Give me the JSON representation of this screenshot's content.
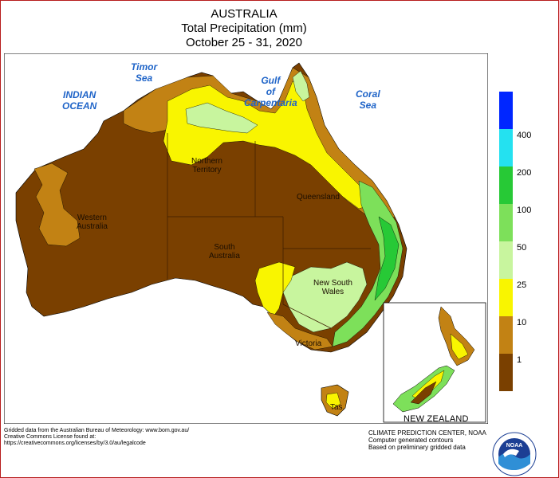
{
  "title": {
    "line1": "AUSTRALIA",
    "line2": "Total Precipitation (mm)",
    "line3": "October 25 - 31, 2020"
  },
  "seas": {
    "indian_ocean": [
      "INDIAN",
      "OCEAN"
    ],
    "timor_sea": [
      "Timor",
      "Sea"
    ],
    "gulf": [
      "Gulf",
      "of",
      "Carpentaria"
    ],
    "coral_sea": [
      "Coral",
      "Sea"
    ]
  },
  "states": {
    "northern_territory": [
      "Northern",
      "Territory"
    ],
    "western_australia": [
      "Western",
      "Australia"
    ],
    "queensland": [
      "Queensland"
    ],
    "south_australia": [
      "South",
      "Australia"
    ],
    "new_south_wales": [
      "New South",
      "Wales"
    ],
    "victoria": [
      "Victoria"
    ],
    "tasmania": [
      "Tas."
    ]
  },
  "inset_label": "NEW ZEALAND",
  "legend": {
    "labels": [
      "400",
      "200",
      "100",
      "50",
      "25",
      "10",
      "1"
    ],
    "colors": [
      "#0026ff",
      "#24e1f0",
      "#27c936",
      "#7de05a",
      "#c8f59e",
      "#f9f500",
      "#c28214",
      "#7a4000"
    ]
  },
  "colors": {
    "very_dry": "#7a4000",
    "dry": "#c28214",
    "light": "#f9f500",
    "moderate": "#c8f59e",
    "wet": "#7de05a",
    "very_wet": "#27c936",
    "ocean": "#ffffff"
  },
  "credits": {
    "line1": "Gridded data from the Australian Bureau of Meteorology: www.bom.gov.au/",
    "line2": "Creative Commons License found at:",
    "line3": "https://creativecommons.org/licenses/by/3.0/au/legalcode"
  },
  "cpc": {
    "line1": "CLIMATE PREDICTION CENTER, NOAA",
    "line2": "Computer generated contours",
    "line3": "Based on preliminary gridded data"
  },
  "logo_text": [
    "NOAA",
    "NATIONAL OCEANIC AND ATMOSPHERIC ADMINISTRATION"
  ]
}
